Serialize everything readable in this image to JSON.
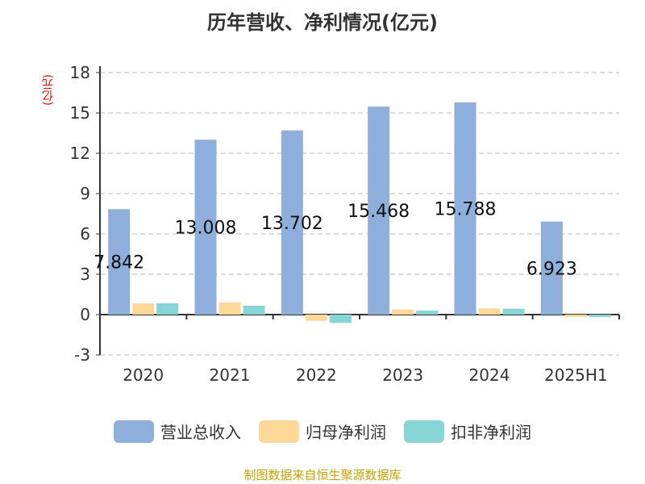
{
  "chart_data": {
    "type": "bar",
    "title": "历年营收、净利情况(亿元)",
    "ylabel": "(亿元)",
    "categories": [
      "2020",
      "2021",
      "2022",
      "2023",
      "2024",
      "2025H1"
    ],
    "ylim": [
      -3,
      18
    ],
    "yticks": [
      -3,
      0,
      3,
      6,
      9,
      12,
      15,
      18
    ],
    "grid": true,
    "legend_position": "bottom",
    "series": [
      {
        "name": "营业总收入",
        "color": "#8eaedb",
        "values": [
          7.842,
          13.008,
          13.702,
          15.468,
          15.788,
          6.923
        ],
        "labels": [
          "7.842",
          "13.008",
          "13.702",
          "15.468",
          "15.788",
          "6.923"
        ]
      },
      {
        "name": "归母净利润",
        "color": "#fdd899",
        "values": [
          0.84,
          0.9,
          -0.46,
          0.38,
          0.46,
          -0.18
        ]
      },
      {
        "name": "扣非净利润",
        "color": "#88d5d8",
        "values": [
          0.84,
          0.66,
          -0.62,
          0.3,
          0.44,
          -0.18
        ]
      }
    ]
  },
  "source": "制图数据来自恒生聚源数据库"
}
